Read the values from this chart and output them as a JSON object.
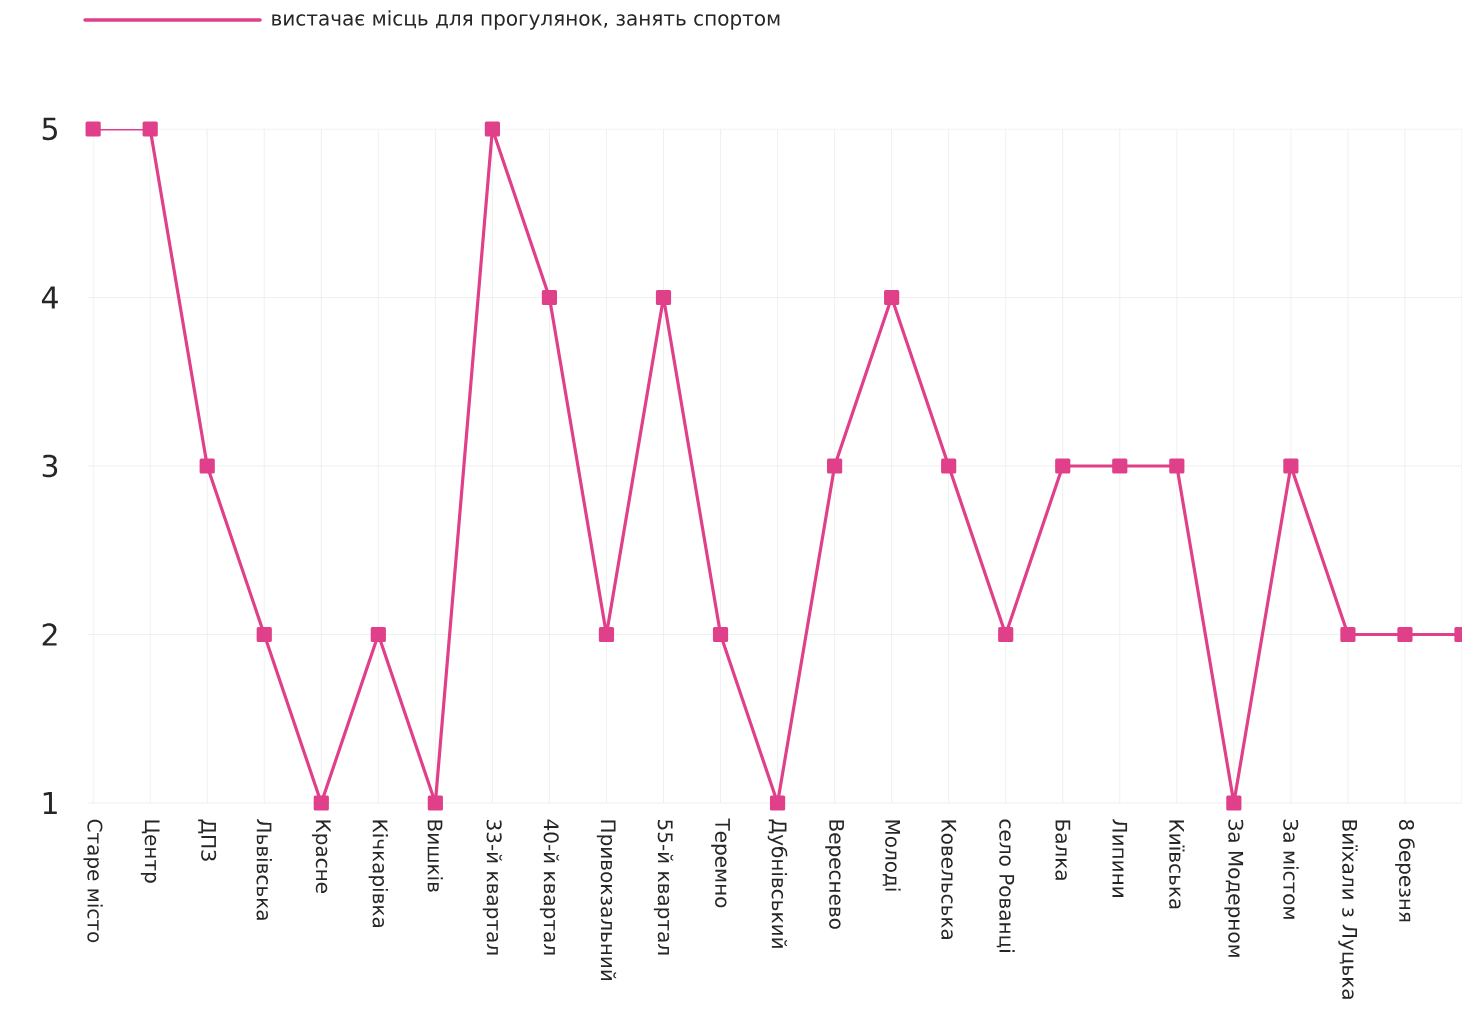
{
  "chart_data": {
    "type": "line",
    "categories": [
      "Старе місто",
      "Центр",
      "ДПЗ",
      "Львівська",
      "Красне",
      "Кічкарівка",
      "Вишків",
      "33-й квартал",
      "40-й квартал",
      "Привокзальний",
      "55-й квартал",
      "Теремно",
      "Дубнівський",
      "Вереснево",
      "Молоді",
      "Ковельська",
      "село Рованці",
      "Балка",
      "Липини",
      "Київська",
      "За Модерном",
      "За містом",
      "Виїхали з Луцька",
      "8 березня",
      null
    ],
    "series": [
      {
        "name": "вистачає місць для прогулянок, занять спортом",
        "color": "#e0408a",
        "values": [
          5,
          5,
          3,
          2,
          1,
          2,
          1,
          5,
          4,
          2,
          4,
          2,
          1,
          3,
          4,
          3,
          2,
          3,
          3,
          3,
          1,
          3,
          2,
          2,
          2
        ]
      }
    ],
    "ylim": [
      1,
      5
    ],
    "yticks": [
      1,
      2,
      3,
      4,
      5
    ],
    "grid": true,
    "legend": "top left",
    "marker": "square",
    "line_style": "solid"
  }
}
